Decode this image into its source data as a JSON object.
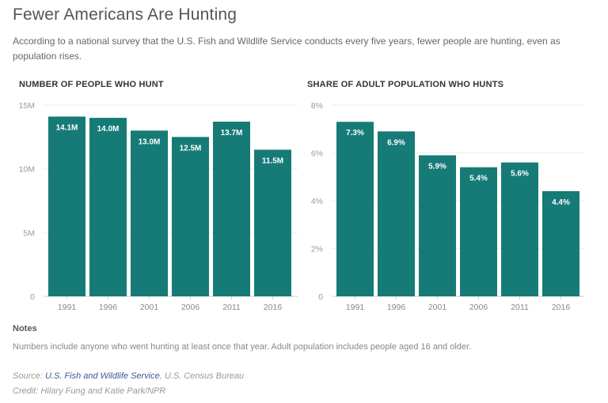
{
  "title": "Fewer Americans Are Hunting",
  "subtitle": "According to a national survey that the U.S. Fish and Wildlife Service conducts every five years, fewer people are hunting, even as population rises.",
  "notes": {
    "heading": "Notes",
    "text": "Numbers include anyone who went hunting at least once that year. Adult population includes people aged 16 and older."
  },
  "source": {
    "label": "Source: ",
    "link": "U.S. Fish and Wildlife Service",
    "rest": ", U.S. Census Bureau"
  },
  "credit": "Credit: Hilary Fung and Katie Park/NPR",
  "colors": {
    "bar": "#167b77",
    "label": "#ffffff"
  },
  "chart_data": [
    {
      "type": "bar",
      "title": "NUMBER OF PEOPLE WHO HUNT",
      "categories": [
        "1991",
        "1996",
        "2001",
        "2006",
        "2011",
        "2016"
      ],
      "values": [
        14.1,
        14.0,
        13.0,
        12.5,
        13.7,
        11.5
      ],
      "data_labels": [
        "14.1M",
        "14.0M",
        "13.0M",
        "12.5M",
        "13.7M",
        "11.5M"
      ],
      "ylim": [
        0,
        15
      ],
      "yticks": [
        0,
        5,
        10,
        15
      ],
      "ytick_labels": [
        "0",
        "5M",
        "10M",
        "15M"
      ],
      "grid": true
    },
    {
      "type": "bar",
      "title": "SHARE OF ADULT POPULATION WHO HUNTS",
      "categories": [
        "1991",
        "1996",
        "2001",
        "2006",
        "2011",
        "2016"
      ],
      "values": [
        7.3,
        6.9,
        5.9,
        5.4,
        5.6,
        4.4
      ],
      "data_labels": [
        "7.3%",
        "6.9%",
        "5.9%",
        "5.4%",
        "5.6%",
        "4.4%"
      ],
      "ylim": [
        0,
        8
      ],
      "yticks": [
        0,
        2,
        4,
        6,
        8
      ],
      "ytick_labels": [
        "0",
        "2%",
        "4%",
        "6%",
        "8%"
      ],
      "grid": true
    }
  ]
}
